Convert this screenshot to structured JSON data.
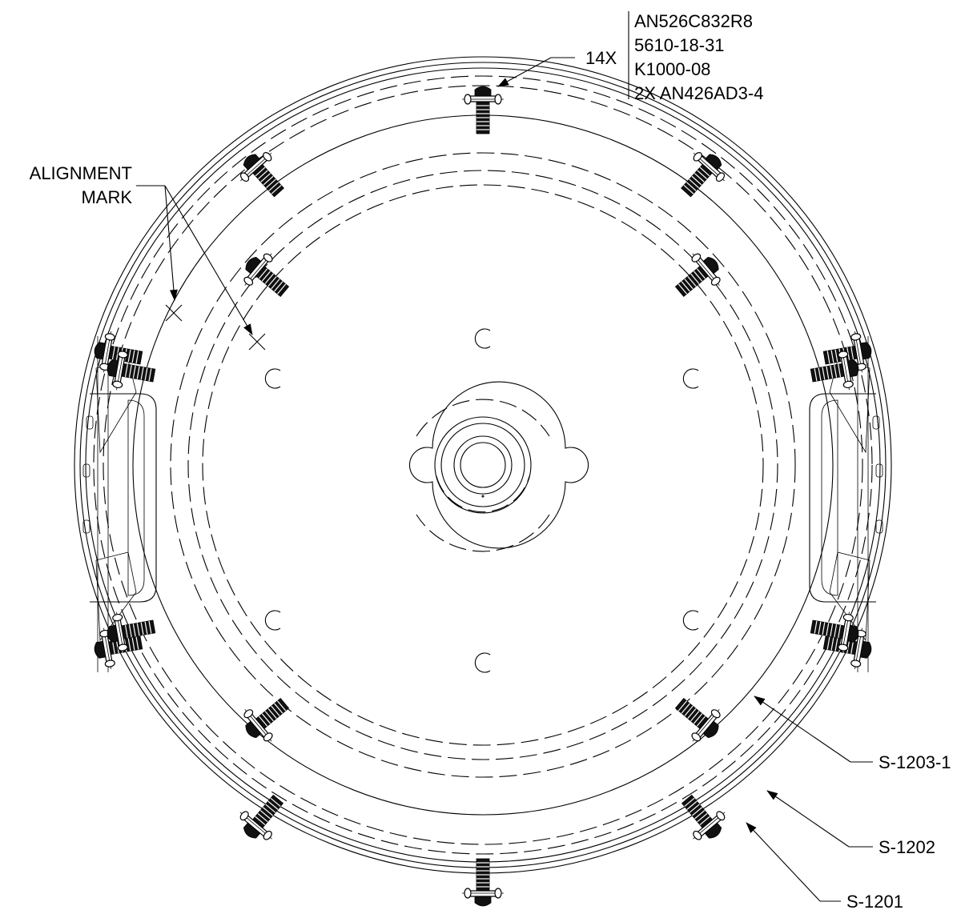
{
  "callouts": {
    "count": "14X",
    "parts": [
      "AN526C832R8",
      "5610-18-31",
      "K1000-08",
      "2X AN426AD3-4"
    ],
    "alignment_line1": "ALIGNMENT",
    "alignment_line2": "MARK",
    "s1203": "S-1203-1",
    "s1202": "S-1202",
    "s1201": "S-1201"
  }
}
